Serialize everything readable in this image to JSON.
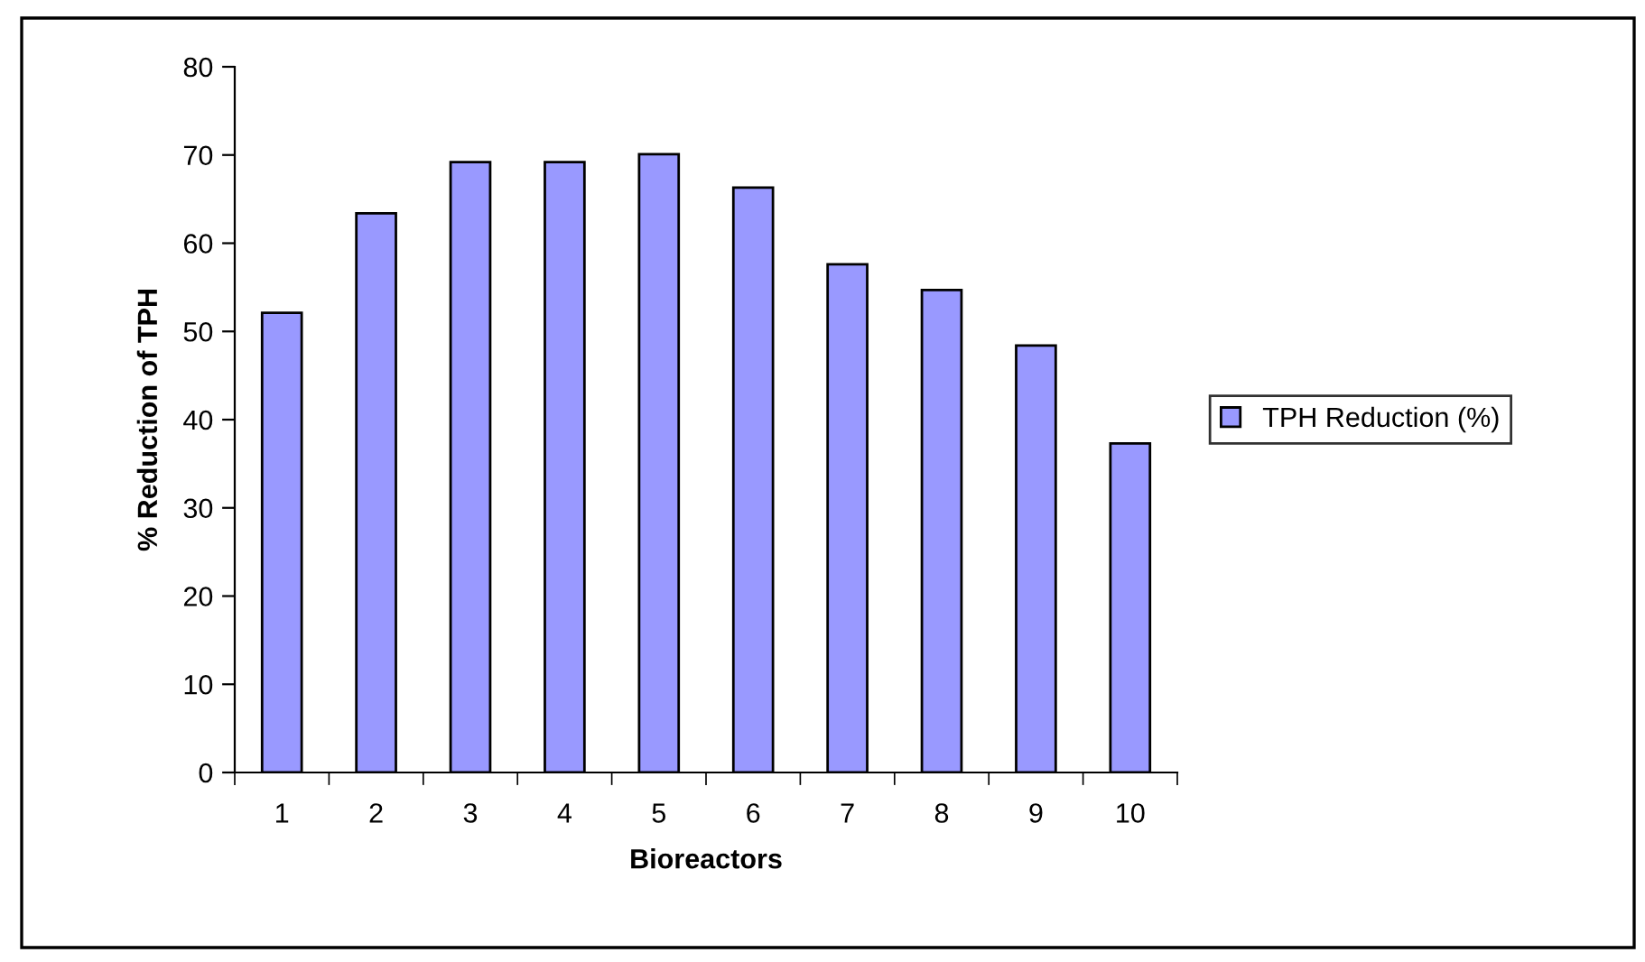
{
  "chart_data": {
    "type": "bar",
    "xlabel": "Bioreactors",
    "ylabel": "% Reduction of TPH",
    "categories": [
      "1",
      "2",
      "3",
      "4",
      "5",
      "6",
      "7",
      "8",
      "9",
      "10"
    ],
    "series": [
      {
        "name": "TPH Reduction (%)",
        "color": "#9999ff",
        "values": [
          52.1,
          63.4,
          69.2,
          69.2,
          70.1,
          66.3,
          57.6,
          54.7,
          48.4,
          37.3
        ]
      }
    ],
    "ylim": [
      0,
      80
    ],
    "yticks": [
      0,
      10,
      20,
      30,
      40,
      50,
      60,
      70,
      80
    ],
    "grid": false,
    "legend": "right"
  }
}
